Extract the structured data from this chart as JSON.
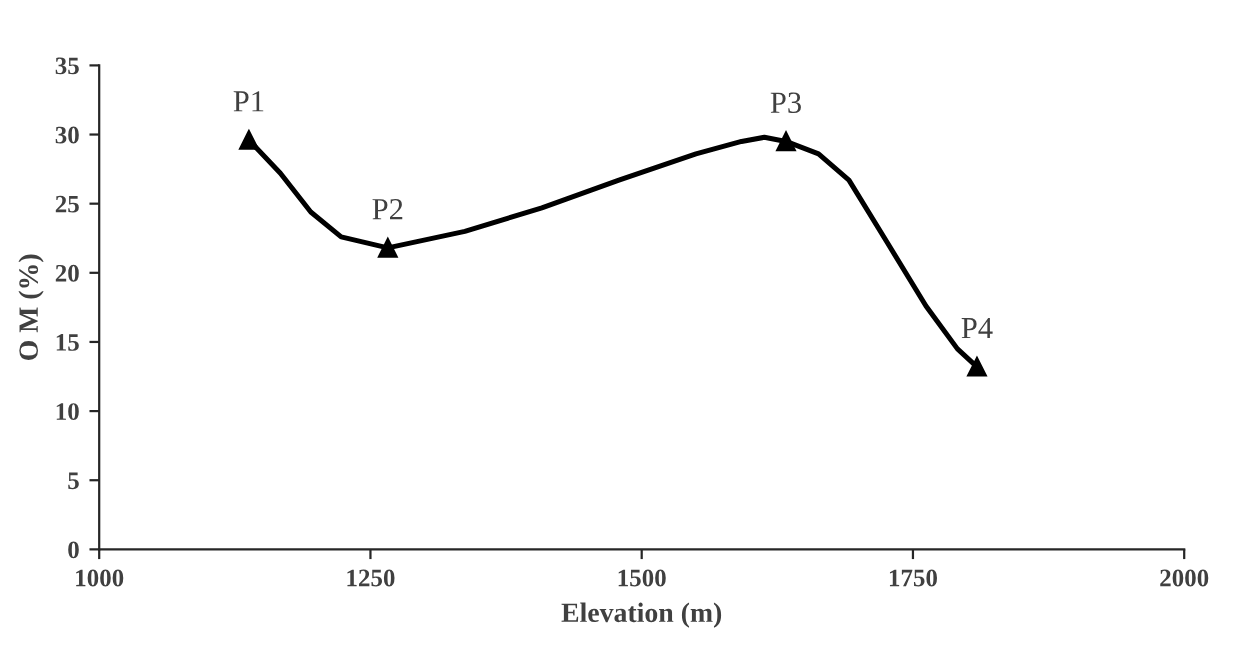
{
  "chart_data": {
    "type": "line",
    "xlabel": "Elevation (m)",
    "ylabel": "O M (%)",
    "x": [
      1138,
      1266,
      1633,
      1809
    ],
    "series": [
      {
        "color": "#000000",
        "marker": "none",
        "x": [
          1138,
          1167,
          1195,
          1223,
          1266,
          1337,
          1408,
          1479,
          1550,
          1592,
          1613,
          1633,
          1663,
          1691,
          1727,
          1762,
          1791,
          1809
        ],
        "values": [
          29.6,
          27.2,
          24.4,
          22.6,
          21.8,
          23.0,
          24.7,
          26.7,
          28.6,
          29.5,
          29.8,
          29.5,
          28.6,
          26.7,
          22.1,
          17.6,
          14.5,
          13.2
        ]
      },
      {
        "type": "scatter",
        "color": "#000000",
        "values": [
          29.6,
          21.8,
          29.5,
          13.2
        ]
      }
    ],
    "xlim": [
      1000,
      2000
    ],
    "xticks": [
      1000,
      1250,
      1500,
      1750,
      2000
    ],
    "ylim": [
      0,
      35
    ],
    "yticks": [
      0,
      5,
      10,
      15,
      20,
      25,
      30,
      35
    ],
    "grid": false,
    "legend": false,
    "marker": "triangle",
    "line_style": "solid",
    "annotations": [
      {
        "text": "P1",
        "x": 1138,
        "y": 29.6
      },
      {
        "text": "P2",
        "x": 1266,
        "y": 21.8
      },
      {
        "text": "P3",
        "x": 1633,
        "y": 29.5
      },
      {
        "text": "P4",
        "x": 1809,
        "y": 13.2
      }
    ]
  }
}
